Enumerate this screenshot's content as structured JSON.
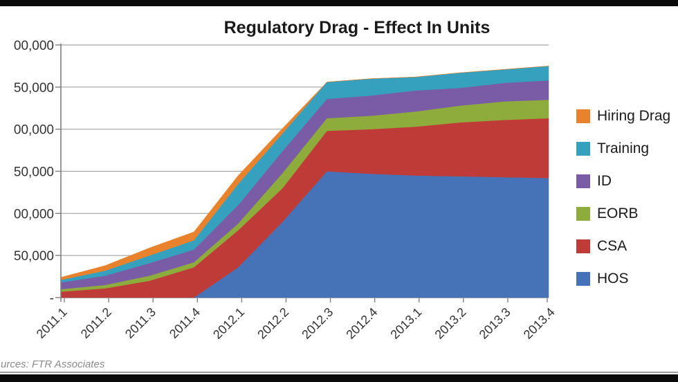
{
  "title": "Regulatory Drag - Effect In Units",
  "source_note": "urces: FTR Associates",
  "colors": {
    "hos_blue": "#4673B8",
    "csa_red": "#BE3B38",
    "eorb_green": "#8EAC3B",
    "id_purple": "#7A5BA5",
    "training_teal": "#35A1BE",
    "hiring_orange": "#E8822C",
    "gridline": "#A3A3A3",
    "axis": "#7F7F7F",
    "tick_text": "#333333",
    "title_text": "#1A1A1A",
    "frame_bar": "#0A0A0A",
    "source_text": "#8A8A8A"
  },
  "y_axis": {
    "visible_labels_top_down": [
      "00,000",
      "50,000",
      "00,000",
      "50,000",
      "00,000",
      "50,000",
      "-"
    ],
    "min": 0,
    "max": 300000,
    "step": 50000
  },
  "x_axis": {
    "labels": [
      "2011.1",
      "2011.2",
      "2011.3",
      "2011.4",
      "2012.1",
      "2012.2",
      "2012.3",
      "2012.4",
      "2013.1",
      "2013.2",
      "2013.3",
      "2013.4"
    ],
    "label_rotation_deg": -45
  },
  "legend": {
    "position": "right",
    "items": [
      {
        "key": "hiring-drag",
        "label": "Hiring Drag",
        "color": "#E8822C"
      },
      {
        "key": "training",
        "label": "Training",
        "color": "#35A1BE"
      },
      {
        "key": "id",
        "label": "ID",
        "color": "#7A5BA5"
      },
      {
        "key": "eorb",
        "label": "EORB",
        "color": "#8EAC3B"
      },
      {
        "key": "csa",
        "label": "CSA",
        "color": "#BE3B38"
      },
      {
        "key": "hos",
        "label": "HOS",
        "color": "#4673B8"
      }
    ]
  },
  "chart_data": {
    "type": "area",
    "stacked": true,
    "title": "Regulatory Drag - Effect In Units",
    "xlabel": "",
    "ylabel": "",
    "ylim": [
      0,
      300000
    ],
    "y_step": 50000,
    "grid": true,
    "legend_position": "right",
    "categories": [
      "2011.1",
      "2011.2",
      "2011.3",
      "2011.4",
      "2012.1",
      "2012.2",
      "2012.3",
      "2012.4",
      "2013.1",
      "2013.2",
      "2013.3",
      "2013.4"
    ],
    "series_bottom_to_top": [
      {
        "name": "HOS",
        "color": "#4673B8",
        "values": [
          0,
          0,
          0,
          0,
          36000,
          90000,
          150000,
          147000,
          145000,
          144000,
          143000,
          142000
        ]
      },
      {
        "name": "CSA",
        "color": "#BE3B38",
        "values": [
          7000,
          11000,
          20000,
          36000,
          44000,
          40000,
          48000,
          53000,
          58000,
          64000,
          68000,
          71000
        ]
      },
      {
        "name": "EORB",
        "color": "#8EAC3B",
        "values": [
          3000,
          4000,
          6000,
          6000,
          8000,
          18000,
          15000,
          16000,
          18000,
          20000,
          22000,
          22000
        ]
      },
      {
        "name": "ID",
        "color": "#7A5BA5",
        "values": [
          8000,
          11000,
          15000,
          15000,
          22000,
          26000,
          23000,
          24000,
          25000,
          21000,
          22000,
          23000
        ]
      },
      {
        "name": "Training",
        "color": "#35A1BE",
        "values": [
          3000,
          6000,
          9000,
          11000,
          25000,
          21000,
          20000,
          20000,
          16000,
          18000,
          16000,
          17000
        ]
      },
      {
        "name": "Hiring Drag",
        "color": "#E8822C",
        "values": [
          3000,
          6000,
          9000,
          10000,
          10000,
          6000,
          0,
          0,
          0,
          0,
          0,
          0
        ]
      }
    ]
  }
}
